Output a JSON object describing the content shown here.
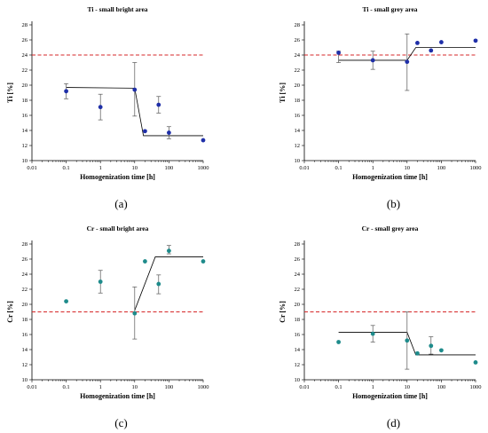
{
  "xlabel": "Homogenization time [h]",
  "colors": {
    "ti_points": "#1f2fa8",
    "cr_points": "#1e8b8b",
    "reference": "#d62728",
    "fit": "#000000"
  },
  "chart_data": [
    {
      "id": "a",
      "type": "scatter",
      "title": "Ti - small bright area",
      "ylabel": "Ti [%]",
      "xlabel": "Homogenization time [h]",
      "panel_label": "(a)",
      "x_scale": "log",
      "xlim": [
        0.01,
        1000
      ],
      "ylim": [
        10,
        28
      ],
      "x_ticks": [
        "0.01",
        "0.1",
        "1",
        "10",
        "100",
        "1000"
      ],
      "y_ticks": [
        "10",
        "12",
        "14",
        "16",
        "18",
        "20",
        "22",
        "24",
        "26",
        "28"
      ],
      "reference_line": 24,
      "points": [
        {
          "x": 0.1,
          "y": 19.2,
          "lo": 18.2,
          "hi": 20.2
        },
        {
          "x": 1,
          "y": 17.1,
          "lo": 15.4,
          "hi": 18.8
        },
        {
          "x": 10,
          "y": 19.4,
          "lo": 15.9,
          "hi": 23.0
        },
        {
          "x": 20,
          "y": 13.9
        },
        {
          "x": 50,
          "y": 17.4,
          "lo": 16.3,
          "hi": 18.5
        },
        {
          "x": 100,
          "y": 13.7,
          "lo": 12.9,
          "hi": 14.5
        },
        {
          "x": 1000,
          "y": 12.7
        }
      ],
      "fit": [
        [
          0.1,
          19.7
        ],
        [
          10,
          19.6
        ],
        [
          18,
          13.3
        ],
        [
          1000,
          13.3
        ]
      ]
    },
    {
      "id": "b",
      "type": "scatter",
      "title": "Ti - small grey area",
      "ylabel": "Ti [%]",
      "xlabel": "Homogenization time [h]",
      "panel_label": "(b)",
      "x_scale": "log",
      "xlim": [
        0.01,
        1000
      ],
      "ylim": [
        10,
        28
      ],
      "x_ticks": [
        "0.01",
        "0.1",
        "1",
        "10",
        "100",
        "1000"
      ],
      "y_ticks": [
        "10",
        "12",
        "14",
        "16",
        "18",
        "20",
        "22",
        "24",
        "26",
        "28"
      ],
      "reference_line": 24,
      "points": [
        {
          "x": 0.1,
          "y": 24.3,
          "lo": 23.0,
          "hi": 24.5
        },
        {
          "x": 1,
          "y": 23.3,
          "lo": 22.1,
          "hi": 24.5
        },
        {
          "x": 10,
          "y": 23.1,
          "lo": 19.3,
          "hi": 26.8
        },
        {
          "x": 20,
          "y": 25.6
        },
        {
          "x": 50,
          "y": 24.6
        },
        {
          "x": 100,
          "y": 25.7
        },
        {
          "x": 1000,
          "y": 25.9
        }
      ],
      "fit": [
        [
          0.1,
          23.3
        ],
        [
          10,
          23.3
        ],
        [
          18,
          25.0
        ],
        [
          1000,
          25.0
        ]
      ]
    },
    {
      "id": "c",
      "type": "scatter",
      "title": "Cr - small bright area",
      "ylabel": "Cr [%]",
      "xlabel": "Homogenization time [h]",
      "panel_label": "(c)",
      "x_scale": "log",
      "xlim": [
        0.01,
        1000
      ],
      "ylim": [
        10,
        28
      ],
      "x_ticks": [
        "0.01",
        "0.1",
        "1",
        "10",
        "100",
        "1000"
      ],
      "y_ticks": [
        "10",
        "12",
        "14",
        "16",
        "18",
        "20",
        "22",
        "24",
        "26",
        "28"
      ],
      "reference_line": 19,
      "points": [
        {
          "x": 0.1,
          "y": 20.4
        },
        {
          "x": 1,
          "y": 23.0,
          "lo": 21.5,
          "hi": 24.5
        },
        {
          "x": 10,
          "y": 18.8,
          "lo": 15.4,
          "hi": 22.3
        },
        {
          "x": 20,
          "y": 25.7
        },
        {
          "x": 50,
          "y": 22.7,
          "lo": 21.4,
          "hi": 23.9
        },
        {
          "x": 100,
          "y": 27.1,
          "lo": 26.7,
          "hi": 27.8
        },
        {
          "x": 1000,
          "y": 25.7
        }
      ],
      "fit": [
        [
          10,
          19.2
        ],
        [
          40,
          26.3
        ],
        [
          1000,
          26.3
        ]
      ]
    },
    {
      "id": "d",
      "type": "scatter",
      "title": "Cr - small grey area",
      "ylabel": "Cr [%]",
      "xlabel": "Homogenization time [h]",
      "panel_label": "(d)",
      "x_scale": "log",
      "xlim": [
        0.01,
        1000
      ],
      "ylim": [
        10,
        28
      ],
      "x_ticks": [
        "0.01",
        "0.1",
        "1",
        "10",
        "100",
        "1000"
      ],
      "y_ticks": [
        "10",
        "12",
        "14",
        "16",
        "18",
        "20",
        "22",
        "24",
        "26",
        "28"
      ],
      "reference_line": 19,
      "points": [
        {
          "x": 0.1,
          "y": 15.0
        },
        {
          "x": 1,
          "y": 16.1,
          "lo": 15.0,
          "hi": 17.2
        },
        {
          "x": 10,
          "y": 15.2,
          "lo": 11.4,
          "hi": 19.0
        },
        {
          "x": 20,
          "y": 13.5
        },
        {
          "x": 50,
          "y": 14.5,
          "lo": 13.4,
          "hi": 15.7
        },
        {
          "x": 100,
          "y": 13.9
        },
        {
          "x": 1000,
          "y": 12.3
        }
      ],
      "fit": [
        [
          0.1,
          16.3
        ],
        [
          10,
          16.3
        ],
        [
          18,
          13.3
        ],
        [
          1000,
          13.3
        ]
      ]
    }
  ]
}
